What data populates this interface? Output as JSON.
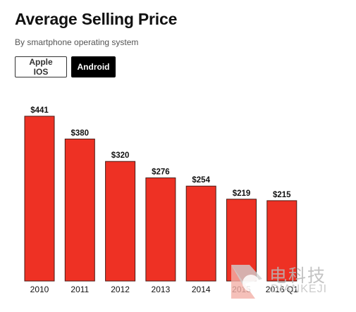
{
  "header": {
    "title": "Average Selling Price",
    "subtitle": "By smartphone operating system"
  },
  "toggle": {
    "options": [
      "Apple IOS",
      "Android"
    ],
    "selected": "Android"
  },
  "watermark": {
    "text_cn": "电科技",
    "text_en": "DIANKEJI"
  },
  "colors": {
    "bar": "#ee3124",
    "active_button": "#000000"
  },
  "chart_data": {
    "type": "bar",
    "title": "Average Selling Price",
    "subtitle": "By smartphone operating system",
    "categories": [
      "2010",
      "2011",
      "2012",
      "2013",
      "2014",
      "2015",
      "2016 Q1"
    ],
    "values": [
      441,
      380,
      320,
      276,
      254,
      219,
      215
    ],
    "value_labels": [
      "$441",
      "$380",
      "$320",
      "$276",
      "$254",
      "$219",
      "$215"
    ],
    "xlabel": "",
    "ylabel": "",
    "ylim": [
      0,
      441
    ],
    "grid": false,
    "legend": "none"
  }
}
